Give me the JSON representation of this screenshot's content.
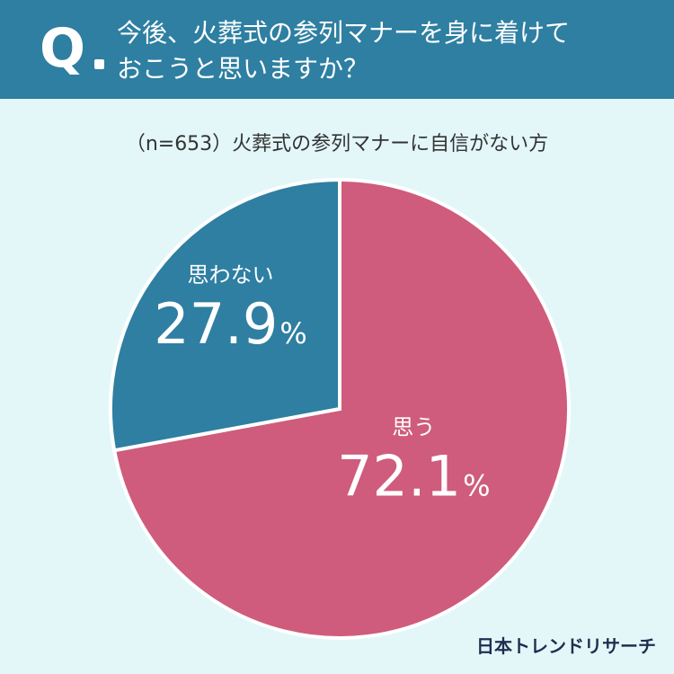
{
  "question": {
    "mark": "Q",
    "line1": "今後、火葬式の参列マナーを身に着けて",
    "line2": "おこうと思いますか？"
  },
  "subtitle": "（n=653）火葬式の参列マナーに自信がない方",
  "chart_data": {
    "type": "pie",
    "n": 653,
    "slices": [
      {
        "label": "思う",
        "value": 72.1,
        "display": "72.1",
        "unit": "%",
        "color": "#cf5c7c"
      },
      {
        "label": "思わない",
        "value": 27.9,
        "display": "27.9",
        "unit": "%",
        "color": "#2e7fa1"
      }
    ]
  },
  "brand": "日本トレンドリサーチ"
}
